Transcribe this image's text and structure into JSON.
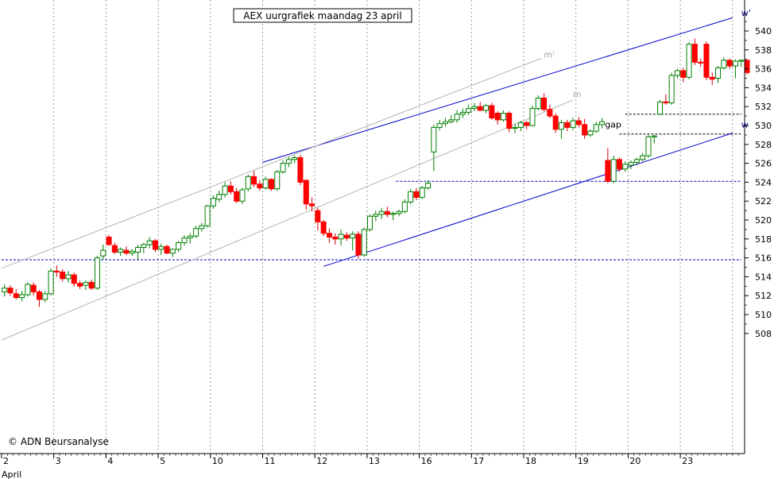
{
  "chart_data": {
    "type": "candlestick",
    "title": "AEX uurgrafiek maandag 23 april",
    "copyright": "© ADN Beursanalyse",
    "xlabel": "April",
    "ylabel": "",
    "ylim": [
      507,
      543
    ],
    "y_ticks": [
      508,
      510,
      512,
      514,
      516,
      518,
      520,
      522,
      524,
      526,
      528,
      530,
      532,
      534,
      536,
      538,
      540
    ],
    "grid": "vertical dotted at day boundaries",
    "up_color": "#008000",
    "down_color": "#ff0000",
    "dates": [
      {
        "label": "2",
        "from": 0,
        "to": 9
      },
      {
        "label": "3",
        "from": 9,
        "to": 18
      },
      {
        "label": "4",
        "from": 18,
        "to": 27
      },
      {
        "label": "5",
        "from": 27,
        "to": 36
      },
      {
        "label": "10",
        "from": 36,
        "to": 45
      },
      {
        "label": "11",
        "from": 45,
        "to": 54
      },
      {
        "label": "12",
        "from": 54,
        "to": 63
      },
      {
        "label": "13",
        "from": 63,
        "to": 72
      },
      {
        "label": "16",
        "from": 72,
        "to": 81
      },
      {
        "label": "17",
        "from": 81,
        "to": 90
      },
      {
        "label": "18",
        "from": 90,
        "to": 99
      },
      {
        "label": "19",
        "from": 99,
        "to": 108
      },
      {
        "label": "20",
        "from": 108,
        "to": 117
      },
      {
        "label": "23",
        "from": 117,
        "to": 126
      }
    ],
    "candles": [
      [
        512.4,
        513.2,
        511.9,
        512.8
      ],
      [
        512.8,
        513.1,
        512.0,
        512.3
      ],
      [
        512.2,
        512.7,
        511.6,
        511.8
      ],
      [
        511.8,
        512.5,
        511.4,
        512.1
      ],
      [
        512.1,
        513.4,
        511.9,
        513.2
      ],
      [
        513.1,
        513.4,
        512.0,
        512.4
      ],
      [
        512.4,
        512.6,
        510.8,
        511.6
      ],
      [
        511.6,
        512.5,
        511.3,
        512.2
      ],
      [
        512.2,
        514.9,
        512.0,
        514.6
      ],
      [
        514.6,
        515.2,
        514.0,
        514.5
      ],
      [
        514.5,
        514.8,
        513.5,
        513.8
      ],
      [
        513.8,
        514.6,
        513.4,
        514.2
      ],
      [
        514.2,
        514.4,
        513.0,
        513.3
      ],
      [
        513.3,
        513.6,
        512.7,
        513.0
      ],
      [
        513.1,
        513.6,
        512.6,
        513.4
      ],
      [
        513.4,
        513.7,
        512.6,
        512.8
      ],
      [
        512.8,
        516.2,
        512.6,
        516.0
      ],
      [
        516.2,
        517.4,
        515.8,
        516.8
      ],
      [
        518.2,
        518.4,
        517.3,
        517.4
      ],
      [
        517.3,
        517.6,
        516.4,
        516.6
      ],
      [
        516.6,
        517.1,
        516.2,
        516.9
      ],
      [
        516.8,
        517.2,
        516.3,
        516.5
      ],
      [
        516.5,
        516.9,
        516.2,
        516.7
      ],
      [
        516.6,
        517.4,
        515.8,
        517.1
      ],
      [
        517.1,
        517.6,
        516.5,
        517.4
      ],
      [
        517.4,
        518.2,
        517.0,
        517.8
      ],
      [
        517.8,
        518.0,
        516.6,
        516.9
      ],
      [
        516.9,
        517.5,
        516.3,
        517.2
      ],
      [
        517.2,
        517.4,
        516.4,
        516.5
      ],
      [
        516.5,
        517.0,
        516.1,
        516.9
      ],
      [
        516.9,
        517.8,
        516.6,
        517.6
      ],
      [
        517.6,
        518.4,
        517.3,
        518.1
      ],
      [
        518.1,
        518.6,
        517.5,
        518.3
      ],
      [
        518.3,
        519.4,
        518.1,
        519.1
      ],
      [
        519.1,
        519.7,
        518.8,
        519.4
      ],
      [
        519.4,
        521.6,
        519.2,
        521.5
      ],
      [
        521.5,
        522.6,
        521.2,
        522.3
      ],
      [
        522.2,
        523.1,
        521.9,
        522.7
      ],
      [
        522.7,
        524.0,
        522.4,
        523.6
      ],
      [
        523.6,
        524.1,
        522.7,
        523.0
      ],
      [
        523.0,
        523.4,
        521.8,
        522.0
      ],
      [
        522.0,
        523.4,
        521.7,
        523.2
      ],
      [
        523.3,
        524.8,
        523.0,
        524.6
      ],
      [
        524.6,
        525.2,
        523.5,
        523.8
      ],
      [
        523.8,
        524.2,
        523.1,
        523.4
      ],
      [
        523.4,
        524.6,
        523.2,
        524.3
      ],
      [
        524.3,
        524.4,
        523.1,
        523.3
      ],
      [
        523.3,
        525.3,
        523.1,
        525.1
      ],
      [
        525.1,
        526.3,
        524.9,
        526.0
      ],
      [
        526.0,
        526.7,
        525.6,
        526.4
      ],
      [
        526.4,
        526.8,
        526.0,
        526.6
      ],
      [
        526.6,
        526.9,
        523.7,
        524.0
      ],
      [
        524.2,
        524.3,
        521.1,
        521.7
      ],
      [
        521.7,
        522.4,
        520.9,
        521.5
      ],
      [
        521.0,
        521.3,
        518.9,
        519.8
      ],
      [
        519.8,
        520.0,
        518.3,
        518.6
      ],
      [
        518.6,
        519.1,
        517.6,
        518.2
      ],
      [
        518.2,
        518.6,
        517.4,
        518.0
      ],
      [
        518.0,
        519.0,
        517.3,
        518.5
      ],
      [
        518.4,
        518.7,
        517.8,
        518.1
      ],
      [
        518.1,
        518.8,
        516.8,
        518.5
      ],
      [
        518.5,
        518.8,
        515.9,
        516.3
      ],
      [
        516.3,
        519.2,
        516.1,
        519.0
      ],
      [
        519.0,
        520.6,
        518.8,
        520.4
      ],
      [
        520.4,
        521.0,
        519.9,
        520.6
      ],
      [
        520.6,
        521.3,
        520.1,
        520.9
      ],
      [
        520.9,
        521.4,
        520.3,
        520.6
      ],
      [
        520.6,
        520.9,
        520.0,
        520.7
      ],
      [
        520.7,
        521.1,
        520.4,
        520.9
      ],
      [
        520.9,
        522.2,
        520.7,
        521.9
      ],
      [
        521.9,
        523.3,
        521.7,
        523.0
      ],
      [
        523.0,
        523.4,
        522.1,
        522.4
      ],
      [
        522.4,
        523.6,
        522.2,
        523.4
      ],
      [
        523.4,
        524.2,
        523.2,
        523.9
      ],
      [
        527.2,
        530.1,
        525.2,
        529.8
      ],
      [
        529.8,
        530.6,
        529.5,
        530.2
      ],
      [
        530.2,
        530.8,
        529.9,
        530.4
      ],
      [
        530.4,
        531.1,
        530.2,
        530.6
      ],
      [
        530.6,
        531.6,
        530.3,
        531.2
      ],
      [
        531.2,
        531.8,
        530.8,
        531.4
      ],
      [
        531.4,
        532.2,
        531.1,
        531.8
      ],
      [
        531.8,
        532.4,
        531.5,
        532.0
      ],
      [
        532.0,
        532.5,
        531.6,
        531.6
      ],
      [
        531.6,
        532.3,
        531.3,
        532.1
      ],
      [
        532.1,
        532.4,
        530.6,
        530.8
      ],
      [
        531.3,
        531.5,
        530.1,
        530.6
      ],
      [
        530.6,
        531.6,
        530.4,
        531.3
      ],
      [
        531.3,
        531.5,
        529.3,
        529.7
      ],
      [
        529.7,
        530.2,
        529.2,
        529.8
      ],
      [
        529.8,
        530.5,
        529.4,
        530.3
      ],
      [
        530.3,
        530.5,
        529.6,
        530.0
      ],
      [
        530.0,
        532.1,
        529.9,
        531.8
      ],
      [
        531.8,
        533.2,
        531.6,
        532.9
      ],
      [
        532.9,
        533.4,
        531.5,
        531.7
      ],
      [
        531.7,
        532.2,
        530.8,
        531.0
      ],
      [
        531.0,
        531.3,
        529.2,
        529.6
      ],
      [
        529.6,
        530.6,
        528.6,
        530.3
      ],
      [
        530.3,
        530.6,
        529.4,
        529.8
      ],
      [
        529.8,
        530.8,
        529.5,
        530.5
      ],
      [
        530.5,
        530.9,
        529.8,
        530.1
      ],
      [
        530.1,
        530.7,
        528.6,
        529.0
      ],
      [
        529.0,
        529.6,
        528.8,
        529.4
      ],
      [
        529.4,
        530.4,
        529.2,
        530.1
      ],
      [
        530.1,
        530.8,
        529.7,
        530.4
      ],
      [
        526.3,
        527.6,
        523.9,
        524.1
      ],
      [
        524.1,
        526.8,
        523.9,
        526.4
      ],
      [
        526.4,
        526.6,
        525.1,
        525.4
      ],
      [
        525.4,
        526.2,
        525.1,
        525.9
      ],
      [
        525.8,
        526.3,
        525.4,
        526.1
      ],
      [
        526.1,
        526.6,
        525.8,
        526.4
      ],
      [
        526.4,
        527.1,
        526.2,
        526.8
      ],
      [
        526.8,
        529.0,
        526.6,
        528.8
      ],
      [
        528.8,
        529.0,
        528.1,
        528.9
      ],
      [
        531.2,
        532.7,
        531.1,
        532.5
      ],
      [
        532.5,
        533.3,
        532.2,
        532.4
      ],
      [
        532.4,
        535.6,
        532.2,
        535.3
      ],
      [
        535.3,
        536.0,
        535.0,
        535.8
      ],
      [
        535.8,
        536.1,
        534.6,
        535.1
      ],
      [
        535.1,
        538.8,
        534.9,
        538.6
      ],
      [
        538.6,
        539.2,
        536.4,
        536.7
      ],
      [
        536.7,
        537.1,
        536.2,
        536.6
      ],
      [
        538.6,
        538.9,
        534.8,
        535.1
      ],
      [
        535.1,
        535.6,
        534.3,
        534.9
      ],
      [
        535.0,
        536.3,
        534.5,
        536.1
      ],
      [
        536.1,
        537.2,
        535.9,
        536.9
      ],
      [
        536.9,
        537.1,
        536.0,
        536.3
      ],
      [
        536.3,
        537.0,
        535.0,
        536.8
      ],
      [
        536.8,
        537.0,
        536.2,
        536.9
      ],
      [
        536.9,
        537.0,
        535.4,
        535.6
      ]
    ],
    "channel_lines": [
      {
        "name": "w'",
        "color": "#0000cc",
        "from": [
          45.0,
          526.1
        ],
        "to": [
          126.0,
          541.4
        ]
      },
      {
        "name": "w",
        "color": "#0000cc",
        "from": [
          55.5,
          515.1
        ],
        "to": [
          126.0,
          529.2
        ]
      },
      {
        "name": "m'",
        "color": "#b4b4b4",
        "from": [
          0.0,
          514.9
        ],
        "to": [
          93.0,
          537.1
        ]
      },
      {
        "name": "m",
        "color": "#b4b4b4",
        "from": [
          0.0,
          507.3
        ],
        "to": [
          98.5,
          532.7
        ]
      }
    ],
    "support_lines": [
      {
        "y": 515.8,
        "from": 0.0,
        "to": 130.0,
        "color": "#0000cc"
      },
      {
        "y": 524.1,
        "from": 68.0,
        "to": 130.0,
        "color": "#0000cc"
      },
      {
        "y": 529.1,
        "from": 106.5,
        "to": 129.0,
        "color": "#000000"
      },
      {
        "y": 531.2,
        "from": 107.5,
        "to": 129.0,
        "color": "#000000"
      }
    ],
    "annotations": [
      {
        "text": "gap",
        "x": 104.0,
        "y": 529.8
      },
      {
        "text": "m'",
        "x": 93.5,
        "y": 537.2
      },
      {
        "text": "m",
        "x": 98.5,
        "y": 533.0
      },
      {
        "text": "w'",
        "x": 127.5,
        "y": 541.6
      },
      {
        "text": "w",
        "x": 127.5,
        "y": 529.8
      }
    ]
  }
}
